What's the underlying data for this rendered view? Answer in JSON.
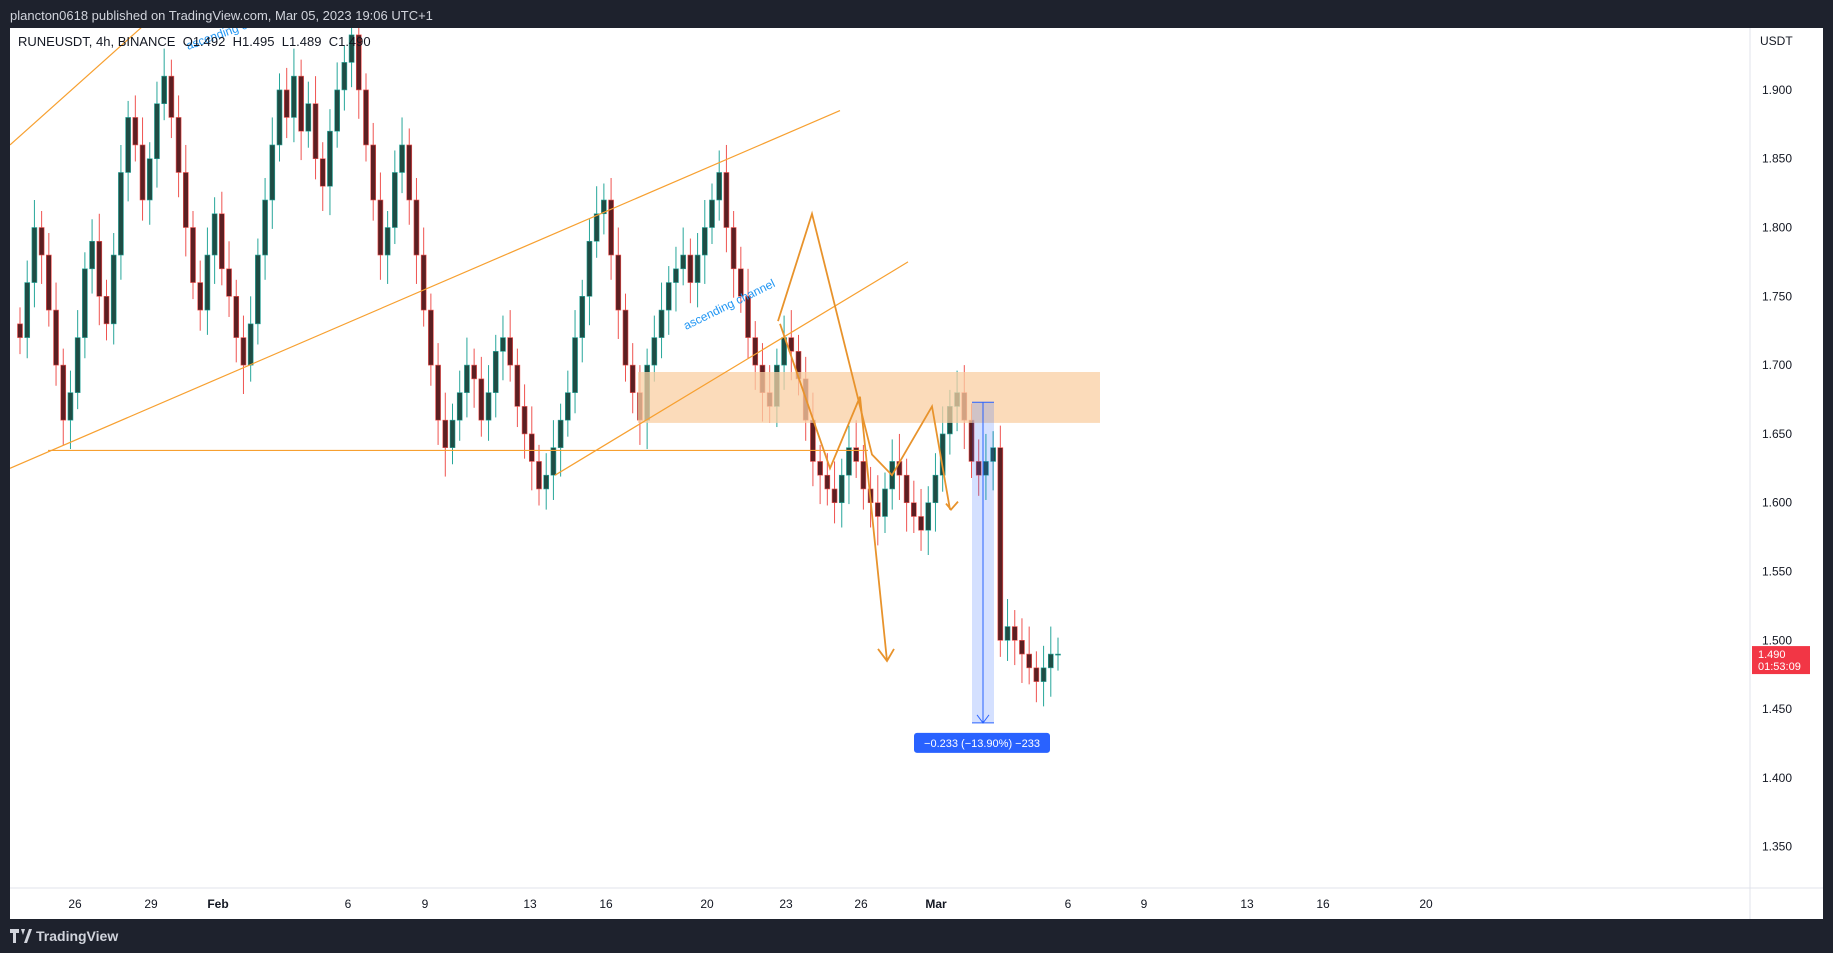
{
  "header": {
    "published": "plancton0618 published on TradingView.com, Mar 05, 2023 19:06 UTC+1"
  },
  "symbol": {
    "line": "RUNEUSDT, 4h, BINANCE  O1.492  H1.495  L1.489  C1.490"
  },
  "footer": {
    "brand": "TradingView"
  },
  "colors": {
    "up": "#26a69a",
    "down": "#ef5350",
    "body_up": "#1e4d45",
    "body_down": "#5d1f22",
    "trend": "#f7a030",
    "zone": "#f9cfa3",
    "measure": "#2962ff",
    "price_tag": "#f23645"
  },
  "chart_data": {
    "type": "candlestick",
    "symbol": "RUNEUSDT",
    "interval": "4h",
    "exchange": "BINANCE",
    "ohlc_last": {
      "open": 1.492,
      "high": 1.495,
      "low": 1.489,
      "close": 1.49
    },
    "y_axis": {
      "unit": "USDT",
      "ticks": [
        "1.900",
        "1.850",
        "1.800",
        "1.750",
        "1.700",
        "1.650",
        "1.600",
        "1.550",
        "1.500",
        "1.450",
        "1.400",
        "1.350"
      ],
      "ylim": [
        1.32,
        1.945
      ]
    },
    "x_axis": {
      "ticks": [
        "26",
        "29",
        "Feb",
        "6",
        "9",
        "13",
        "16",
        "20",
        "23",
        "26",
        "Mar",
        "6",
        "9",
        "13",
        "16",
        "20"
      ]
    },
    "current_price": {
      "label": "1.490",
      "countdown": "01:53:09"
    },
    "annotations": {
      "channel_label_1": "ascending channel",
      "channel_label_2": "ascending channel",
      "measure_label": "−0.233 (−13.90%) −233",
      "zone": {
        "low": 1.658,
        "high": 1.695
      }
    },
    "closes": [
      1.72,
      1.76,
      1.8,
      1.78,
      1.74,
      1.7,
      1.66,
      1.68,
      1.72,
      1.77,
      1.79,
      1.75,
      1.73,
      1.78,
      1.84,
      1.88,
      1.86,
      1.82,
      1.85,
      1.89,
      1.91,
      1.88,
      1.84,
      1.8,
      1.76,
      1.74,
      1.78,
      1.81,
      1.77,
      1.75,
      1.72,
      1.7,
      1.73,
      1.78,
      1.82,
      1.86,
      1.9,
      1.88,
      1.91,
      1.87,
      1.89,
      1.85,
      1.83,
      1.87,
      1.9,
      1.92,
      1.94,
      1.9,
      1.86,
      1.82,
      1.78,
      1.8,
      1.84,
      1.86,
      1.82,
      1.78,
      1.74,
      1.7,
      1.66,
      1.64,
      1.66,
      1.68,
      1.7,
      1.69,
      1.66,
      1.68,
      1.71,
      1.72,
      1.7,
      1.67,
      1.65,
      1.63,
      1.61,
      1.62,
      1.64,
      1.66,
      1.68,
      1.72,
      1.75,
      1.79,
      1.81,
      1.82,
      1.78,
      1.74,
      1.7,
      1.68,
      1.66,
      1.7,
      1.72,
      1.74,
      1.76,
      1.77,
      1.78,
      1.76,
      1.78,
      1.8,
      1.82,
      1.84,
      1.8,
      1.77,
      1.75,
      1.72,
      1.7,
      1.68,
      1.67,
      1.7,
      1.72,
      1.71,
      1.69,
      1.66,
      1.63,
      1.62,
      1.61,
      1.6,
      1.62,
      1.64,
      1.63,
      1.61,
      1.6,
      1.59,
      1.61,
      1.63,
      1.62,
      1.6,
      1.59,
      1.58,
      1.6,
      1.62,
      1.65,
      1.67,
      1.68,
      1.66,
      1.63,
      1.62,
      1.63,
      1.64,
      1.5,
      1.51,
      1.5,
      1.49,
      1.48,
      1.47,
      1.48,
      1.49,
      1.49
    ]
  }
}
